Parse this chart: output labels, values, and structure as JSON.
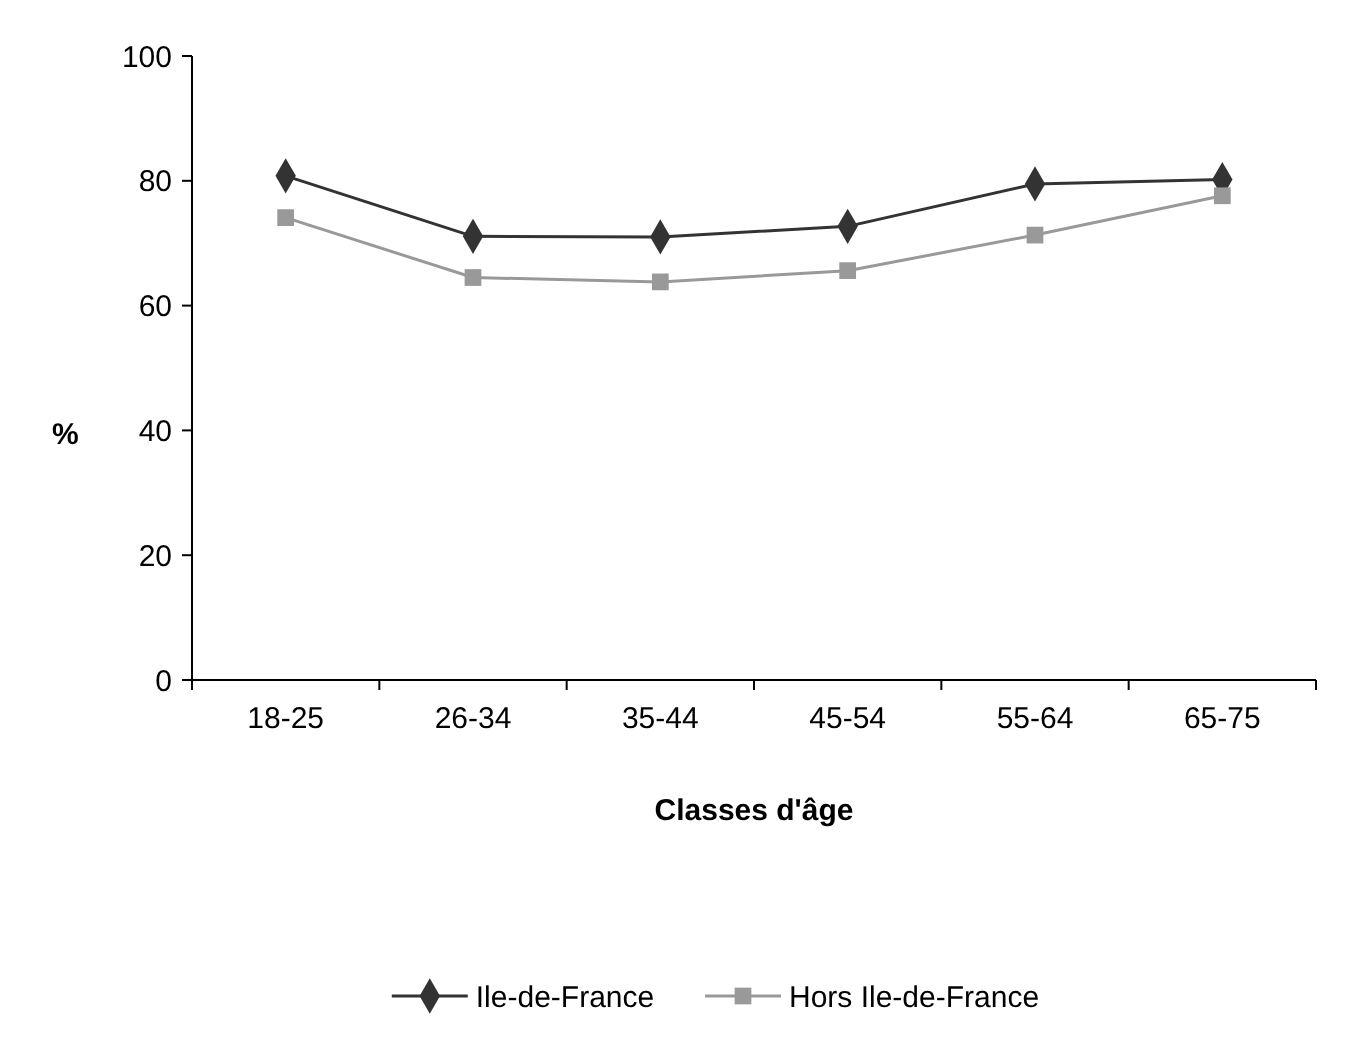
{
  "chart_data": {
    "type": "line",
    "xlabel": "Classes d'âge",
    "ylabel": "%",
    "categories": [
      "18-25",
      "26-34",
      "35-44",
      "45-54",
      "55-64",
      "65-75"
    ],
    "series": [
      {
        "name": "Ile-de-France",
        "color": "#333333",
        "marker": "diamond",
        "values": [
          80.8,
          71.1,
          71,
          72.7,
          79.5,
          80.2
        ]
      },
      {
        "name": "Hors Ile-de-France",
        "color": "#999999",
        "marker": "square",
        "values": [
          74.1,
          64.5,
          63.8,
          65.6,
          71.3,
          77.6
        ]
      }
    ],
    "ylim": [
      0,
      100
    ],
    "yticks": [
      0,
      20,
      40,
      60,
      80,
      100
    ],
    "grid": false,
    "legend": "bottom",
    "line_style": "solid"
  }
}
